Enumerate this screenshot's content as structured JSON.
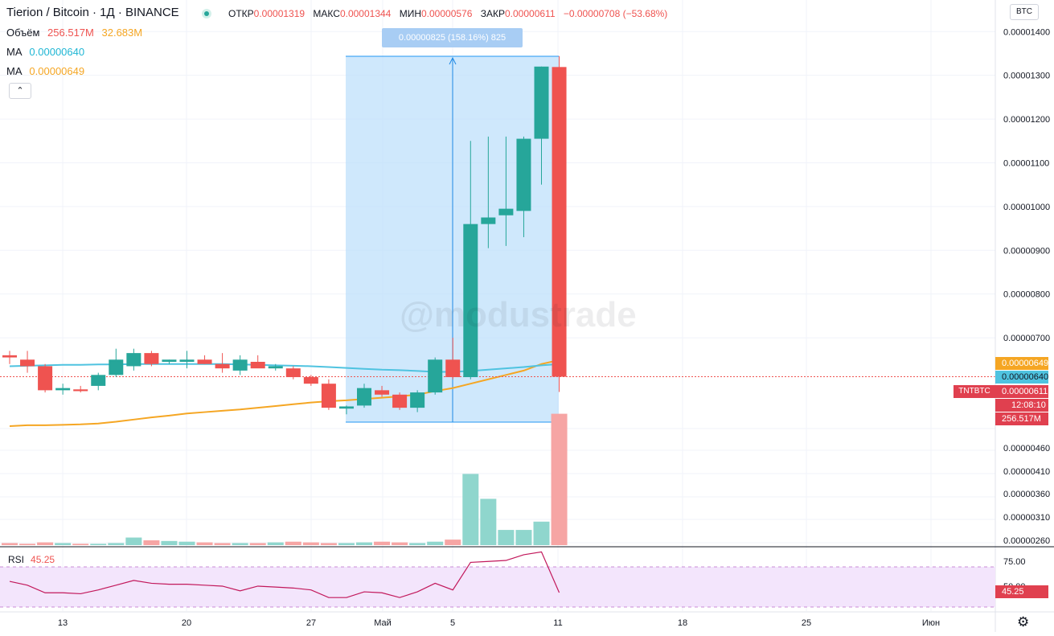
{
  "header": {
    "symbol_title": "Tierion / Bitcoin · 1Д · BINANCE",
    "ohlc": [
      {
        "key": "ОТКР",
        "value": "0.00001319"
      },
      {
        "key": "МАКС",
        "value": "0.00001344"
      },
      {
        "key": "МИН",
        "value": "0.00000576"
      },
      {
        "key": "ЗАКР",
        "value": "0.00000611"
      }
    ],
    "change": "−0.00000708 (−53.68%)"
  },
  "legend": {
    "volume_label": "Объём",
    "volume_value_1": "256.517M",
    "volume_value_2": "32.683M",
    "ma1_label": "MA",
    "ma1_value": "0.00000640",
    "ma2_label": "MA",
    "ma2_value": "0.00000649",
    "collapse_glyph": "⌃"
  },
  "toolbar": {
    "currency": "BTC"
  },
  "measure": {
    "label": "0.00000825 (158.16%) 825"
  },
  "watermark": "@modustrade",
  "price_axis": {
    "ticks": [
      "0.00001400",
      "0.00001300",
      "0.00001200",
      "0.00001100",
      "0.00001000",
      "0.00000900",
      "0.00000800",
      "0.00000700"
    ],
    "volume_ticks": [
      "0.00000460",
      "0.00000410",
      "0.00000360",
      "0.00000310",
      "0.00000260"
    ]
  },
  "price_tags": {
    "ma_orange": "0.00000649",
    "ma_cyan": "0.00000640",
    "last_price": "0.00000611",
    "symbol": "TNTBTC",
    "countdown": "12:08:10",
    "volume": "256.517M"
  },
  "time_axis": {
    "labels": [
      "13",
      "20",
      "27",
      "Май",
      "5",
      "11",
      "18",
      "25",
      "Июн"
    ]
  },
  "rsi": {
    "label": "RSI",
    "value": "45.25",
    "tick_75": "75.00",
    "tick_50": "50.00",
    "tag": "45.25"
  },
  "colors": {
    "up": "#26a69a",
    "down": "#ef5350",
    "ma_cyan": "#4fc3e0",
    "ma_orange": "#f5a623",
    "measure_fill": "#bbdefb",
    "rsi_line": "#c2185b",
    "rsi_band": "#f3e5fc"
  },
  "chart_data": {
    "type": "candlestick",
    "candles": [
      {
        "o": 6.6,
        "h": 6.7,
        "l": 6.4,
        "c": 6.55
      },
      {
        "o": 6.5,
        "h": 6.7,
        "l": 6.2,
        "c": 6.35
      },
      {
        "o": 6.35,
        "h": 6.4,
        "l": 5.75,
        "c": 5.8
      },
      {
        "o": 5.8,
        "h": 5.95,
        "l": 5.7,
        "c": 5.85
      },
      {
        "o": 5.82,
        "h": 5.9,
        "l": 5.75,
        "c": 5.78
      },
      {
        "o": 5.9,
        "h": 6.2,
        "l": 5.8,
        "c": 6.15
      },
      {
        "o": 6.15,
        "h": 6.75,
        "l": 6.1,
        "c": 6.5
      },
      {
        "o": 6.35,
        "h": 6.75,
        "l": 6.25,
        "c": 6.65
      },
      {
        "o": 6.65,
        "h": 6.7,
        "l": 6.35,
        "c": 6.4
      },
      {
        "o": 6.45,
        "h": 6.5,
        "l": 6.4,
        "c": 6.5
      },
      {
        "o": 6.45,
        "h": 6.7,
        "l": 6.3,
        "c": 6.5
      },
      {
        "o": 6.5,
        "h": 6.6,
        "l": 6.4,
        "c": 6.4
      },
      {
        "o": 6.4,
        "h": 6.65,
        "l": 6.2,
        "c": 6.3
      },
      {
        "o": 6.25,
        "h": 6.6,
        "l": 6.15,
        "c": 6.5
      },
      {
        "o": 6.45,
        "h": 6.6,
        "l": 6.35,
        "c": 6.3
      },
      {
        "o": 6.3,
        "h": 6.4,
        "l": 6.25,
        "c": 6.35
      },
      {
        "o": 6.3,
        "h": 6.35,
        "l": 6.05,
        "c": 6.1
      },
      {
        "o": 6.1,
        "h": 6.15,
        "l": 5.9,
        "c": 5.95
      },
      {
        "o": 5.95,
        "h": 6.05,
        "l": 5.35,
        "c": 5.4
      },
      {
        "o": 5.38,
        "h": 5.45,
        "l": 5.25,
        "c": 5.43
      },
      {
        "o": 5.45,
        "h": 5.95,
        "l": 5.4,
        "c": 5.85
      },
      {
        "o": 5.8,
        "h": 5.9,
        "l": 5.65,
        "c": 5.7
      },
      {
        "o": 5.7,
        "h": 5.75,
        "l": 5.35,
        "c": 5.4
      },
      {
        "o": 5.4,
        "h": 5.8,
        "l": 5.3,
        "c": 5.75
      },
      {
        "o": 5.75,
        "h": 6.55,
        "l": 5.7,
        "c": 6.5
      },
      {
        "o": 6.5,
        "h": 7.0,
        "l": 6.05,
        "c": 6.1
      },
      {
        "o": 6.1,
        "h": 11.5,
        "l": 6.05,
        "c": 9.6
      },
      {
        "o": 9.6,
        "h": 11.6,
        "l": 9.05,
        "c": 9.75
      },
      {
        "o": 9.8,
        "h": 11.6,
        "l": 9.1,
        "c": 9.95
      },
      {
        "o": 9.9,
        "h": 11.6,
        "l": 9.3,
        "c": 11.55
      },
      {
        "o": 11.55,
        "h": 13.2,
        "l": 10.5,
        "c": 13.2
      },
      {
        "o": 13.19,
        "h": 13.44,
        "l": 5.76,
        "c": 6.11
      }
    ],
    "volume": [
      3,
      2,
      4,
      3,
      2,
      2,
      3,
      11,
      7,
      6,
      5,
      4,
      3,
      3,
      3,
      4,
      5,
      4,
      3,
      3,
      4,
      5,
      4,
      3,
      5,
      8,
      103,
      67,
      22,
      22,
      34,
      190
    ],
    "ma_cyan": [
      6.35,
      6.36,
      6.37,
      6.38,
      6.38,
      6.39,
      6.39,
      6.4,
      6.4,
      6.4,
      6.4,
      6.4,
      6.4,
      6.39,
      6.38,
      6.37,
      6.36,
      6.35,
      6.33,
      6.31,
      6.29,
      6.27,
      6.26,
      6.24,
      6.22,
      6.22,
      6.24,
      6.27,
      6.3,
      6.33,
      6.37,
      6.4
    ],
    "ma_orange": [
      4.98,
      5.0,
      5.0,
      5.01,
      5.02,
      5.04,
      5.08,
      5.13,
      5.18,
      5.22,
      5.27,
      5.3,
      5.33,
      5.36,
      5.4,
      5.44,
      5.48,
      5.52,
      5.55,
      5.57,
      5.6,
      5.63,
      5.66,
      5.7,
      5.78,
      5.85,
      5.95,
      6.05,
      6.15,
      6.25,
      6.4,
      6.49
    ],
    "rsi": [
      57,
      53,
      45,
      45,
      44,
      48,
      53,
      58,
      55,
      54,
      54,
      53,
      52,
      47,
      52,
      51,
      50,
      48,
      40,
      40,
      46,
      45,
      40,
      46,
      55,
      48,
      77,
      78,
      79,
      85,
      88,
      45.25
    ],
    "unit": "BTC (×1e-6)"
  }
}
